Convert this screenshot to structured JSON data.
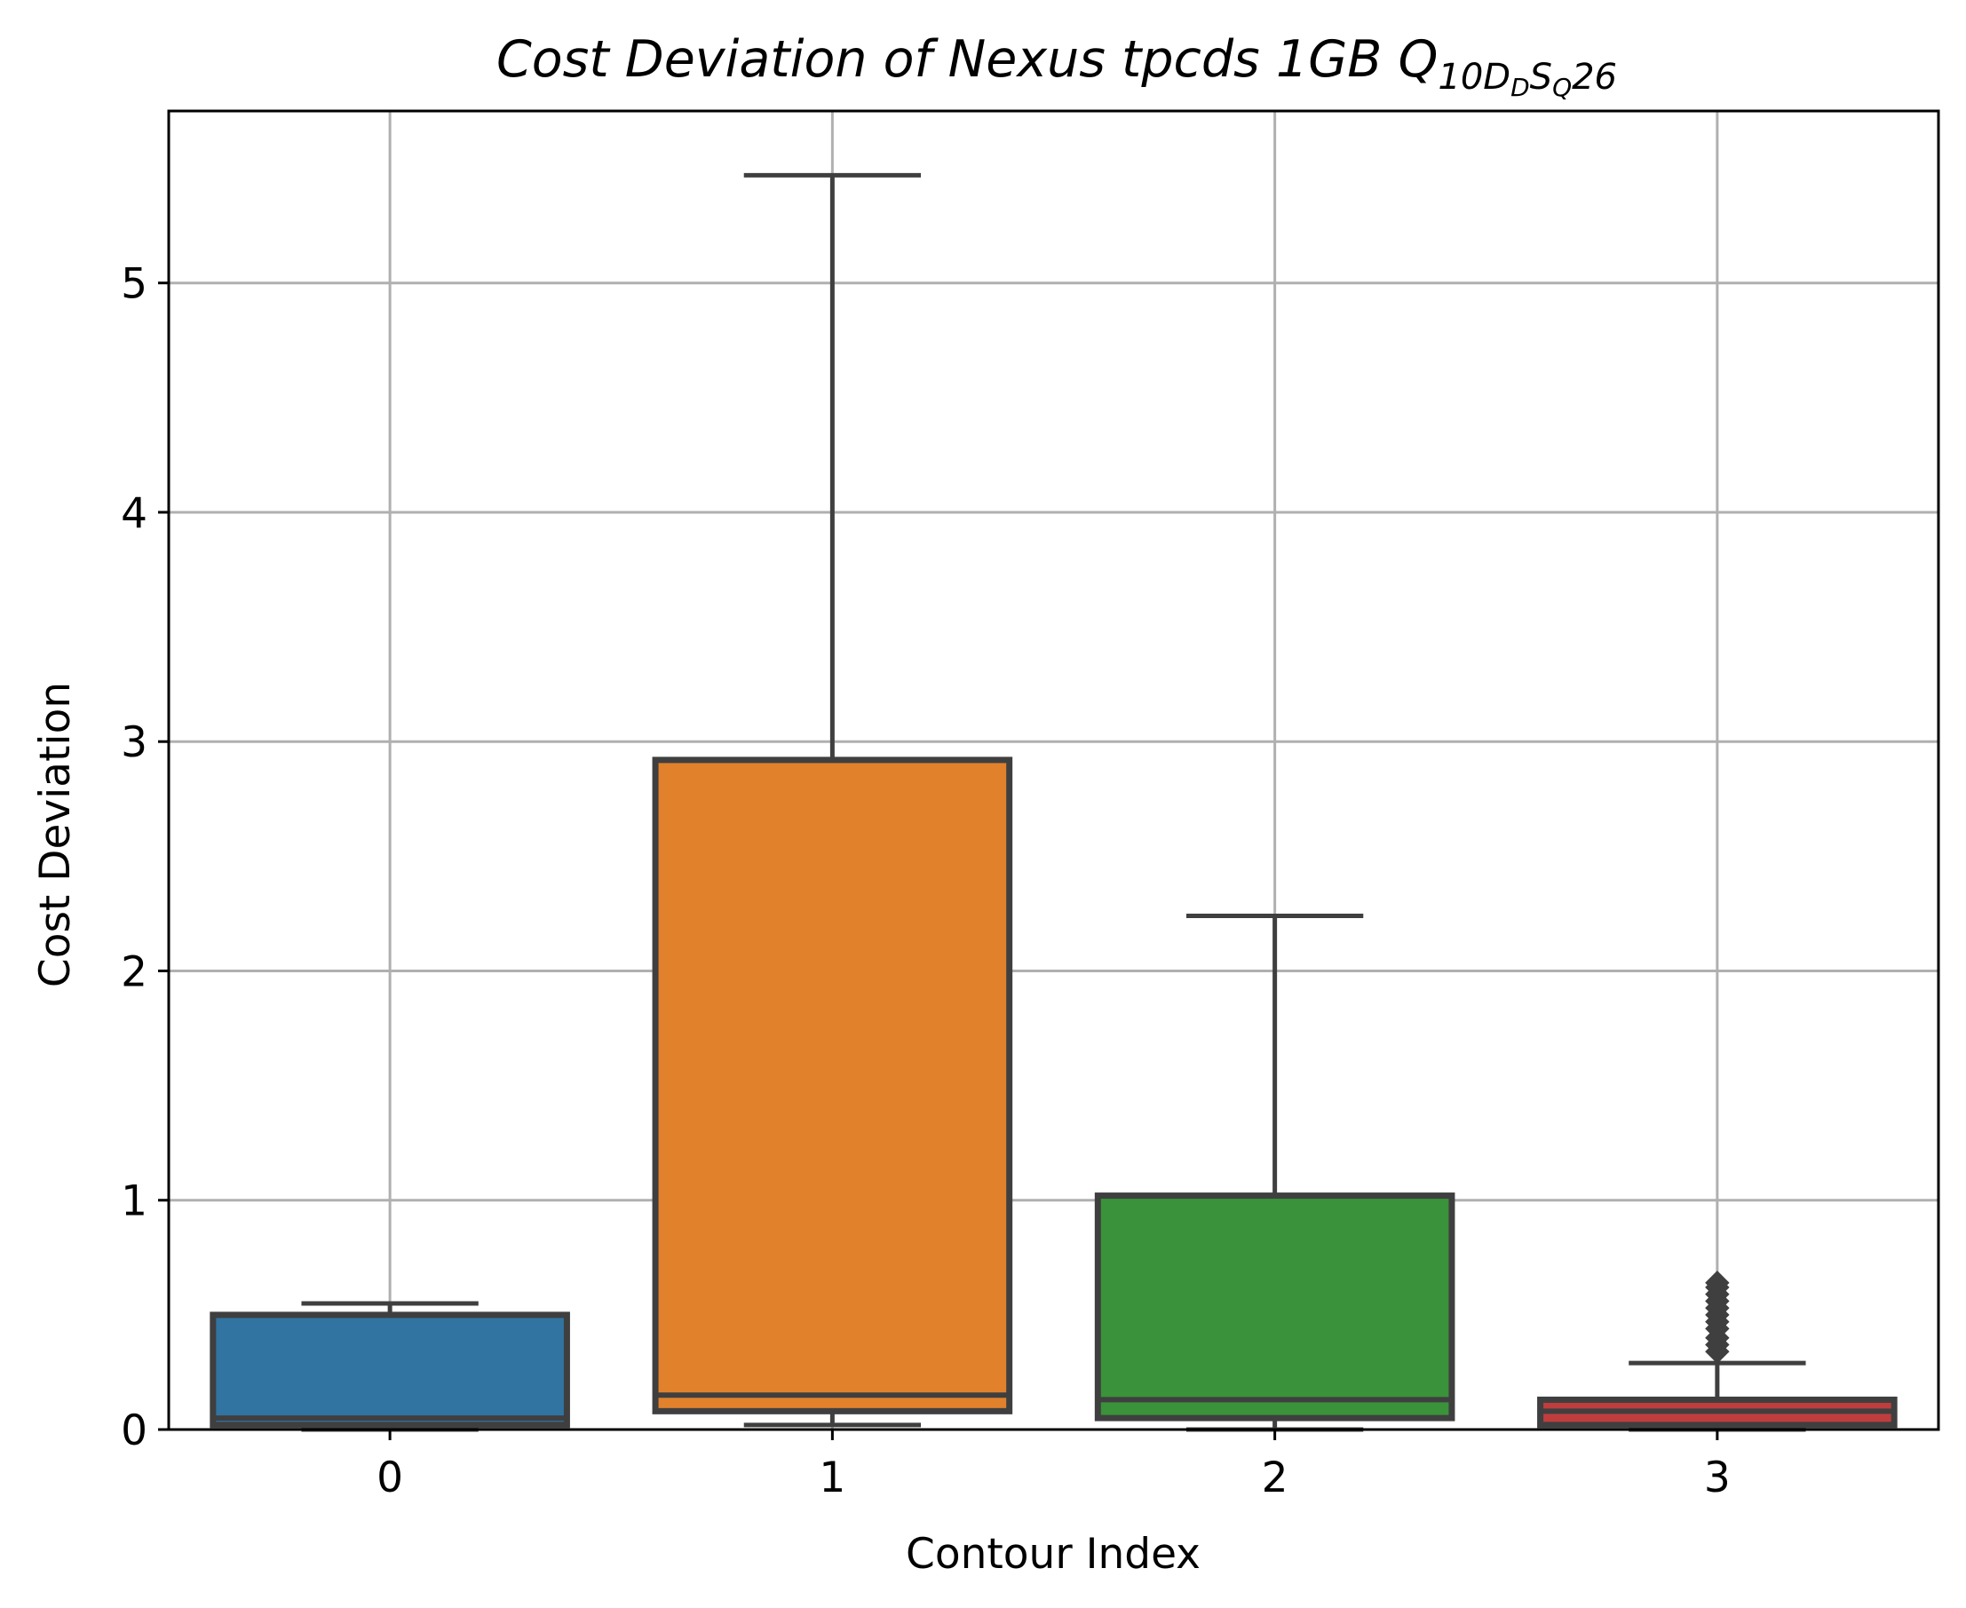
{
  "chart_data": {
    "type": "box",
    "title": {
      "main": "Cost Deviation of Nexus tpcds  1GB  Q",
      "subscript_prefix": "10D",
      "subscript_sub": "D",
      "subscript_mid": "S",
      "subscript_sub2": "Q",
      "subscript_suffix": "26"
    },
    "xlabel": "Contour Index",
    "ylabel": "Cost Deviation",
    "ylim": [
      0,
      5.75
    ],
    "yticks": [
      0,
      1,
      2,
      3,
      4,
      5
    ],
    "grid": true,
    "categories": [
      "0",
      "1",
      "2",
      "3"
    ],
    "boxes": [
      {
        "category": "0",
        "color": "#3274a1",
        "whisker_low": 0.0,
        "q1": 0.02,
        "median": 0.05,
        "q3": 0.5,
        "whisker_high": 0.55,
        "outliers": []
      },
      {
        "category": "1",
        "color": "#e1812c",
        "whisker_low": 0.02,
        "q1": 0.08,
        "median": 0.15,
        "q3": 2.92,
        "whisker_high": 5.47,
        "outliers": []
      },
      {
        "category": "2",
        "color": "#3a923a",
        "whisker_low": 0.0,
        "q1": 0.05,
        "median": 0.13,
        "q3": 1.02,
        "whisker_high": 2.24,
        "outliers": []
      },
      {
        "category": "3",
        "color": "#c03d3e",
        "whisker_low": 0.0,
        "q1": 0.02,
        "median": 0.08,
        "q3": 0.13,
        "whisker_high": 0.29,
        "outliers": [
          0.34,
          0.37,
          0.4,
          0.44,
          0.47,
          0.5,
          0.53,
          0.56,
          0.59,
          0.62,
          0.64
        ]
      }
    ]
  }
}
